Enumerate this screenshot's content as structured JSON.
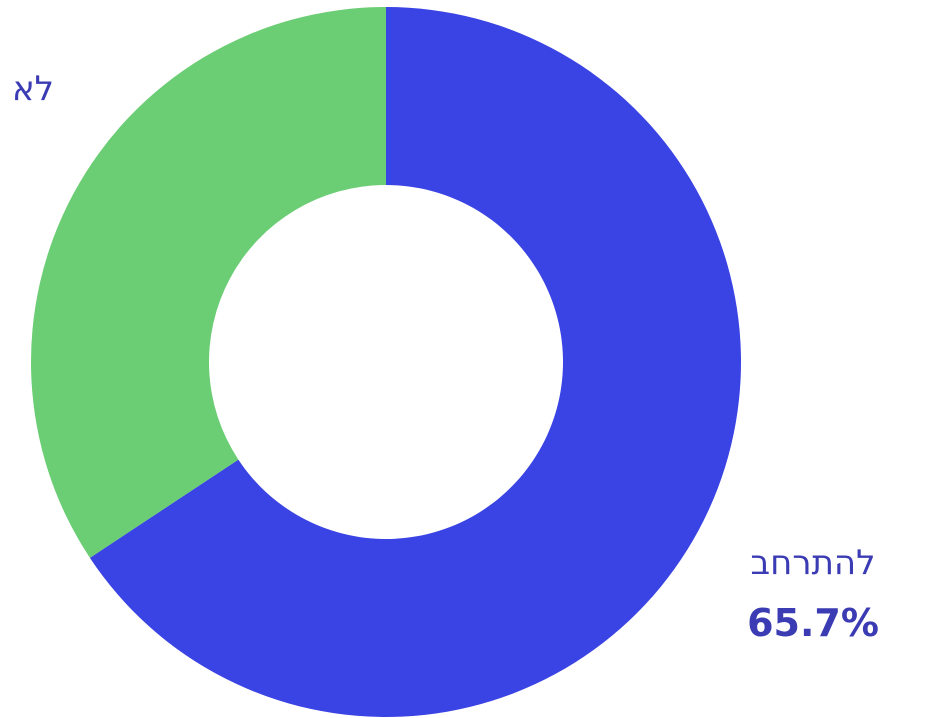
{
  "chart_data": {
    "type": "pie",
    "style": "donut",
    "slices": [
      {
        "label": "להתרחב",
        "value": 65.7,
        "value_text": "65.7%",
        "color": "#3a43e3",
        "label_color": "#3b3bb4"
      },
      {
        "label": "לא",
        "value": 34.3,
        "value_text": "",
        "color": "#6bcd74",
        "label_color": "#3b3bb4"
      }
    ],
    "start": "top",
    "direction": "clockwise",
    "legend": "none"
  }
}
